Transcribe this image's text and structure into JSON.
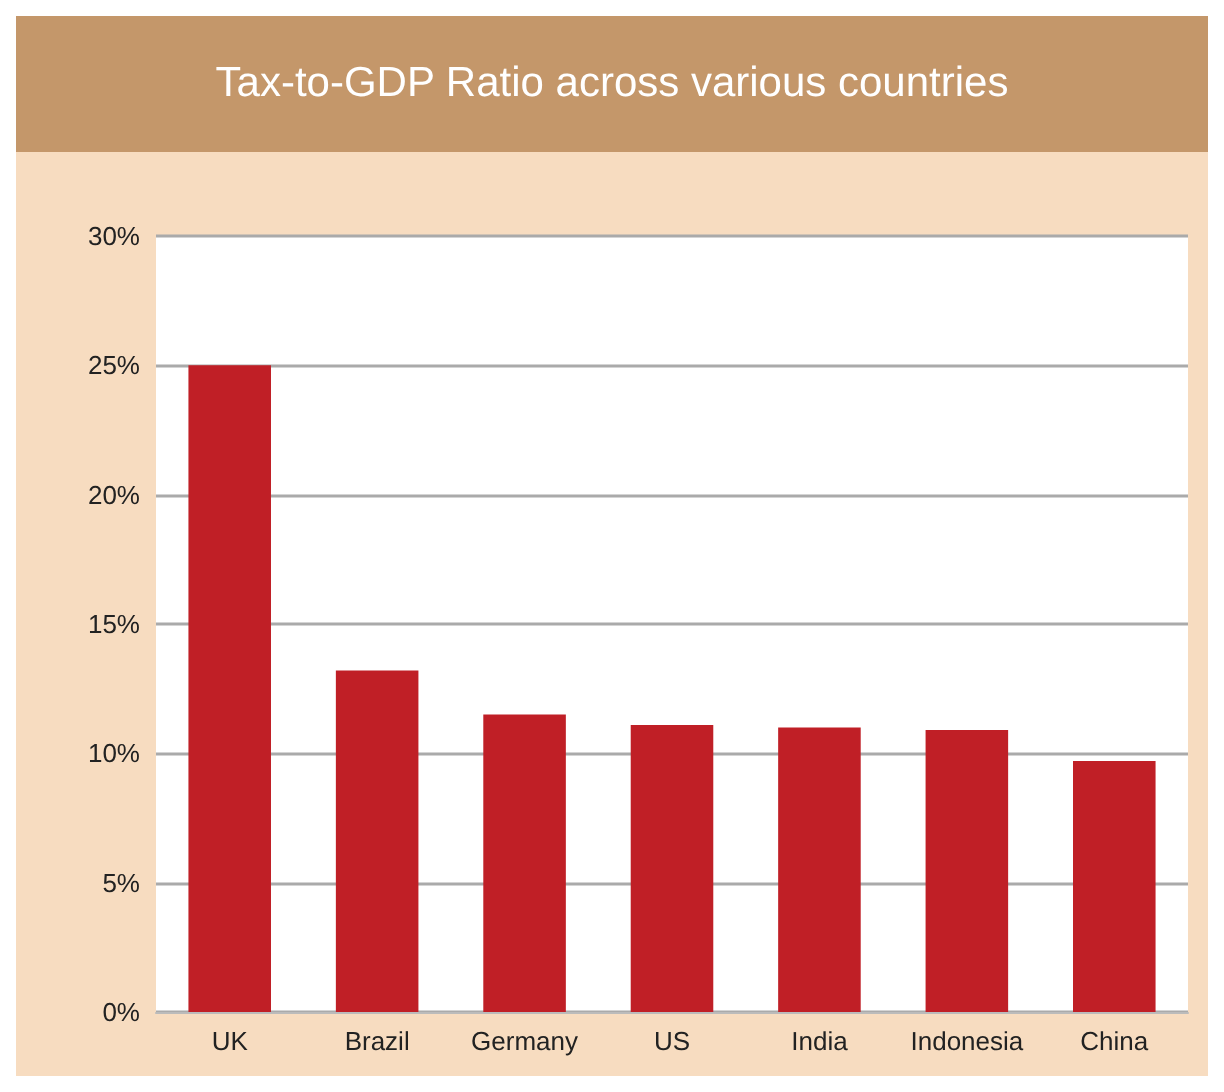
{
  "chart_data": {
    "type": "bar",
    "title": "Tax-to-GDP Ratio across various countries",
    "categories": [
      "UK",
      "Brazil",
      "Germany",
      "US",
      "India",
      "Indonesia",
      "China"
    ],
    "values": [
      25.0,
      13.2,
      11.5,
      11.1,
      11.0,
      10.9,
      9.7
    ],
    "color": "#c01f26",
    "ylim": [
      0,
      30
    ],
    "yticks": [
      {
        "value": 0,
        "label": "0%"
      },
      {
        "value": 5,
        "label": "5%"
      },
      {
        "value": 10,
        "label": "10%"
      },
      {
        "value": 15,
        "label": "15%"
      },
      {
        "value": 20,
        "label": "20%"
      },
      {
        "value": 25,
        "label": "25%"
      },
      {
        "value": 30,
        "label": "30%"
      }
    ],
    "grid": "y"
  }
}
